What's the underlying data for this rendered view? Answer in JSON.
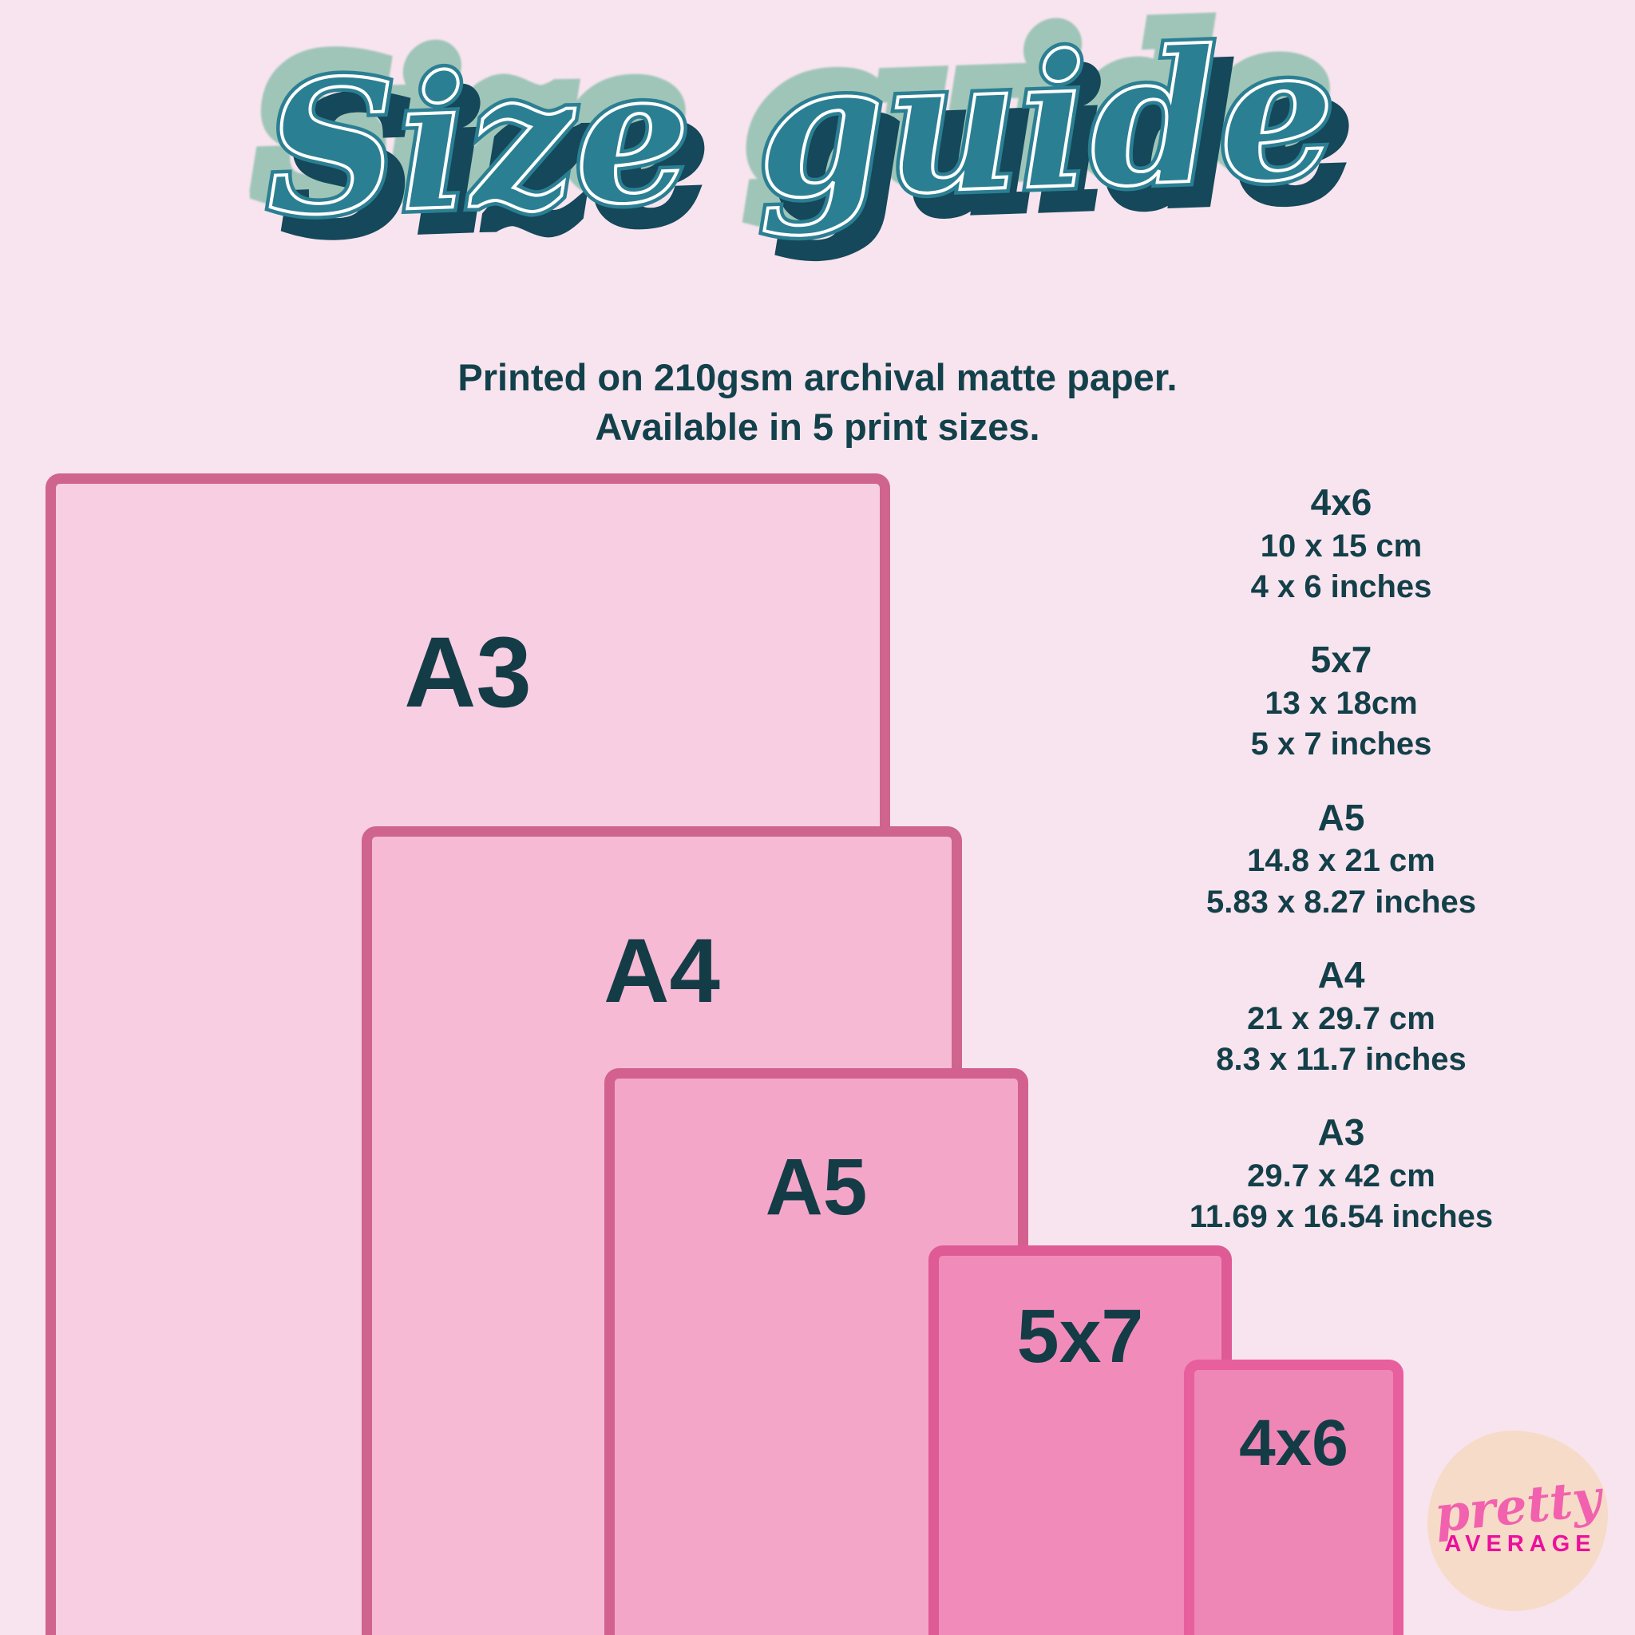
{
  "title": "Size guide",
  "subtitle": {
    "line1": "Printed on 210gsm archival matte paper.",
    "line2": "Available in 5 print sizes."
  },
  "papers": [
    {
      "id": "a3",
      "label": "A3"
    },
    {
      "id": "a4",
      "label": "A4"
    },
    {
      "id": "a5",
      "label": "A5"
    },
    {
      "id": "5x7",
      "label": "5x7"
    },
    {
      "id": "4x6",
      "label": "4x6"
    }
  ],
  "specs": [
    {
      "name": "4x6",
      "cm": "10 x 15 cm",
      "inches": "4 x 6 inches"
    },
    {
      "name": "5x7",
      "cm": "13 x 18cm",
      "inches": "5 x 7 inches"
    },
    {
      "name": "A5",
      "cm": "14.8 x 21 cm",
      "inches": "5.83 x 8.27 inches"
    },
    {
      "name": "A4",
      "cm": "21 x 29.7 cm",
      "inches": "8.3 x 11.7 inches"
    },
    {
      "name": "A3",
      "cm": "29.7 x 42 cm",
      "inches": "11.69 x 16.54 inches"
    }
  ],
  "logo": {
    "script": "pretty",
    "caps": "AVERAGE"
  },
  "colors": {
    "background": "#f8e4ee",
    "title_teal": "#2b7f93",
    "title_dark": "#14485a",
    "title_sage": "#9ec5b8",
    "title_inline": "#ffffff",
    "text_dark_teal": "#133f49",
    "paper_border": "#cf648e",
    "paper_a3_fill": "#f8cee3",
    "paper_a4_fill": "#f6bad5",
    "paper_a5_fill": "#f4a6c9",
    "paper_5x7_fill": "#f18cba",
    "paper_4x6_fill": "#ef87b6",
    "logo_blob": "#f6dbc8",
    "logo_pink": "#f161ae",
    "logo_magenta": "#ec0f9e"
  }
}
